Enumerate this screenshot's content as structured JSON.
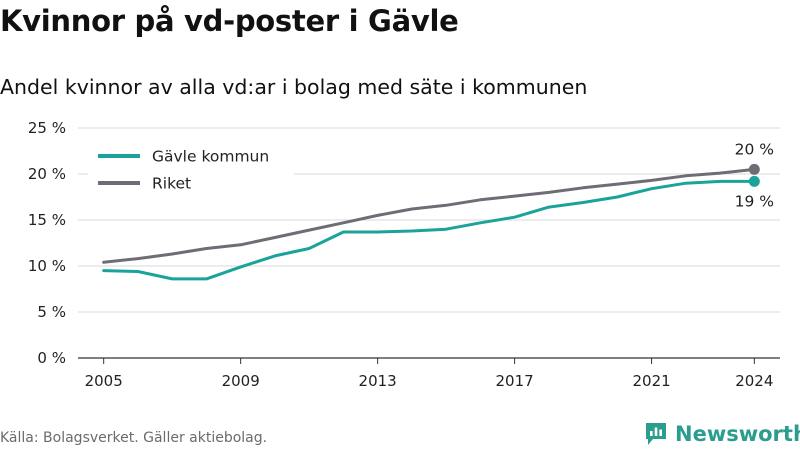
{
  "header": {
    "title": "Kvinnor på vd-poster i Gävle",
    "subtitle": "Andel kvinnor av alla vd:ar i bolag med säte i kommunen"
  },
  "footer": {
    "source": "Källa: Bolagsverket. Gäller aktiebolag.",
    "brand": "Newsworthy"
  },
  "chart_data": {
    "type": "line",
    "title": "Kvinnor på vd-poster i Gävle",
    "subtitle": "Andel kvinnor av alla vd:ar i bolag med säte i kommunen",
    "xlabel": "",
    "ylabel": "",
    "x": [
      2005,
      2006,
      2007,
      2008,
      2009,
      2010,
      2011,
      2012,
      2013,
      2014,
      2015,
      2016,
      2017,
      2018,
      2019,
      2020,
      2021,
      2022,
      2023,
      2024
    ],
    "x_ticks": [
      "2005",
      "2009",
      "2013",
      "2017",
      "2021",
      "2024"
    ],
    "y_ticks": [
      "0 %",
      "5 %",
      "10 %",
      "15 %",
      "20 %",
      "25 %"
    ],
    "ylim": [
      0,
      25
    ],
    "grid": "horizontal",
    "legend": "top-left",
    "series": [
      {
        "name": "Gävle kommun",
        "color": "#1aa39a",
        "values": [
          9.5,
          9.4,
          8.6,
          8.6,
          9.9,
          11.1,
          11.9,
          13.7,
          13.7,
          13.8,
          14.0,
          14.7,
          15.3,
          16.4,
          16.9,
          17.5,
          18.4,
          19.0,
          19.2,
          19.2
        ],
        "end_label": "19 %"
      },
      {
        "name": "Riket",
        "color": "#6e6d75",
        "values": [
          10.4,
          10.8,
          11.3,
          11.9,
          12.3,
          13.1,
          13.9,
          14.7,
          15.5,
          16.2,
          16.6,
          17.2,
          17.6,
          18.0,
          18.5,
          18.9,
          19.3,
          19.8,
          20.1,
          20.5
        ],
        "end_label": "20 %"
      }
    ]
  }
}
